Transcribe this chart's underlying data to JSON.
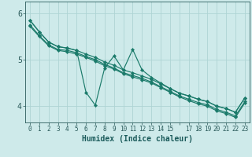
{
  "bg_color": "#ceeaea",
  "grid_color": "#aed4d4",
  "line_color": "#1a7a6a",
  "xlabel": "Humidex (Indice chaleur)",
  "xlabel_fontsize": 7,
  "ytick_fontsize": 7,
  "xtick_fontsize": 5.5,
  "xlim": [
    -0.5,
    23.5
  ],
  "ylim": [
    3.65,
    6.25
  ],
  "yticks": [
    4,
    5,
    6
  ],
  "xtick_labels": [
    "0",
    "1",
    "2",
    "3",
    "4",
    "5",
    "6",
    "7",
    "8",
    "9",
    "10",
    "11",
    "12",
    "13",
    "14",
    "15",
    "",
    "17",
    "18",
    "19",
    "20",
    "21",
    "22",
    "23"
  ],
  "series": [
    [
      5.85,
      5.6,
      5.38,
      5.28,
      5.25,
      5.2,
      4.3,
      4.02,
      4.82,
      5.08,
      4.78,
      5.22,
      4.78,
      4.62,
      4.5,
      4.38,
      4.28,
      4.22,
      4.15,
      4.1,
      4.0,
      3.95,
      3.87,
      4.18
    ],
    [
      5.85,
      5.6,
      5.38,
      5.28,
      5.25,
      5.2,
      5.12,
      5.05,
      4.95,
      4.88,
      4.78,
      4.72,
      4.65,
      4.58,
      4.48,
      4.38,
      4.28,
      4.22,
      4.15,
      4.1,
      4.0,
      3.95,
      3.87,
      4.18
    ],
    [
      5.75,
      5.52,
      5.32,
      5.22,
      5.2,
      5.15,
      5.07,
      5.0,
      4.9,
      4.82,
      4.72,
      4.66,
      4.6,
      4.52,
      4.42,
      4.32,
      4.22,
      4.15,
      4.08,
      4.03,
      3.93,
      3.87,
      3.79,
      4.1
    ],
    [
      5.72,
      5.5,
      5.3,
      5.2,
      5.17,
      5.12,
      5.05,
      4.97,
      4.87,
      4.8,
      4.7,
      4.63,
      4.57,
      4.5,
      4.4,
      4.3,
      4.2,
      4.12,
      4.05,
      4.0,
      3.9,
      3.84,
      3.76,
      4.07
    ]
  ]
}
